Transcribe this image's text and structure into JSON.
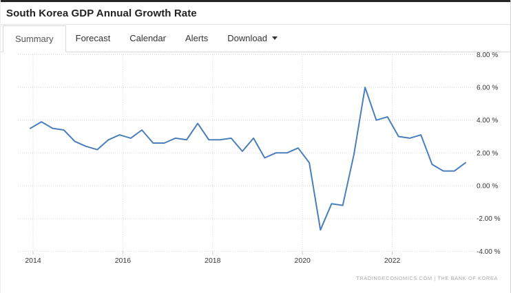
{
  "header": {
    "title": "South Korea GDP Annual Growth Rate"
  },
  "tabs": {
    "items": [
      {
        "label": "Summary",
        "active": true
      },
      {
        "label": "Forecast",
        "active": false
      },
      {
        "label": "Calendar",
        "active": false
      },
      {
        "label": "Alerts",
        "active": false
      },
      {
        "label": "Download",
        "active": false,
        "caret_icon": "chevron-down"
      }
    ]
  },
  "chart_data": {
    "type": "line",
    "title": "South Korea GDP Annual Growth Rate",
    "unit": "percent",
    "line_color": "#4a7ebb",
    "grid": "dotted",
    "legend": "none",
    "x": [
      "2013-Q4",
      "2014-Q1",
      "2014-Q2",
      "2014-Q3",
      "2014-Q4",
      "2015-Q1",
      "2015-Q2",
      "2015-Q3",
      "2015-Q4",
      "2016-Q1",
      "2016-Q2",
      "2016-Q3",
      "2016-Q4",
      "2017-Q1",
      "2017-Q2",
      "2017-Q3",
      "2017-Q4",
      "2018-Q1",
      "2018-Q2",
      "2018-Q3",
      "2018-Q4",
      "2019-Q1",
      "2019-Q2",
      "2019-Q3",
      "2019-Q4",
      "2020-Q1",
      "2020-Q2",
      "2020-Q3",
      "2020-Q4",
      "2021-Q1",
      "2021-Q2",
      "2021-Q3",
      "2021-Q4",
      "2022-Q1",
      "2022-Q2",
      "2022-Q3",
      "2022-Q4",
      "2023-Q1",
      "2023-Q2",
      "2023-Q3"
    ],
    "values": [
      3.5,
      3.9,
      3.5,
      3.4,
      2.7,
      2.4,
      2.2,
      2.8,
      3.1,
      2.9,
      3.4,
      2.6,
      2.6,
      2.9,
      2.8,
      3.8,
      2.8,
      2.8,
      2.9,
      2.1,
      2.9,
      1.7,
      2.0,
      2.0,
      2.3,
      1.4,
      -2.7,
      -1.1,
      -1.2,
      1.9,
      6.0,
      4.0,
      4.2,
      3.0,
      2.9,
      3.1,
      1.3,
      0.9,
      0.9,
      1.4
    ],
    "x_axis": {
      "tick_labels": [
        "2014",
        "2016",
        "2018",
        "2020",
        "2022"
      ],
      "tick_years": [
        2014,
        2016,
        2018,
        2020,
        2022
      ]
    },
    "y_axis": {
      "tick_values": [
        8,
        6,
        4,
        2,
        0,
        -2,
        -4
      ],
      "tick_labels": [
        "8.00 %",
        "6.00 %",
        "4.00 %",
        "2.00 %",
        "0.00 %",
        "-2.00 %",
        "-4.00 %"
      ],
      "range": [
        -4.9,
        8.2
      ]
    }
  },
  "footer": {
    "attribution": "TRADINGECONOMICS.COM | THE BANK OF KOREA"
  }
}
